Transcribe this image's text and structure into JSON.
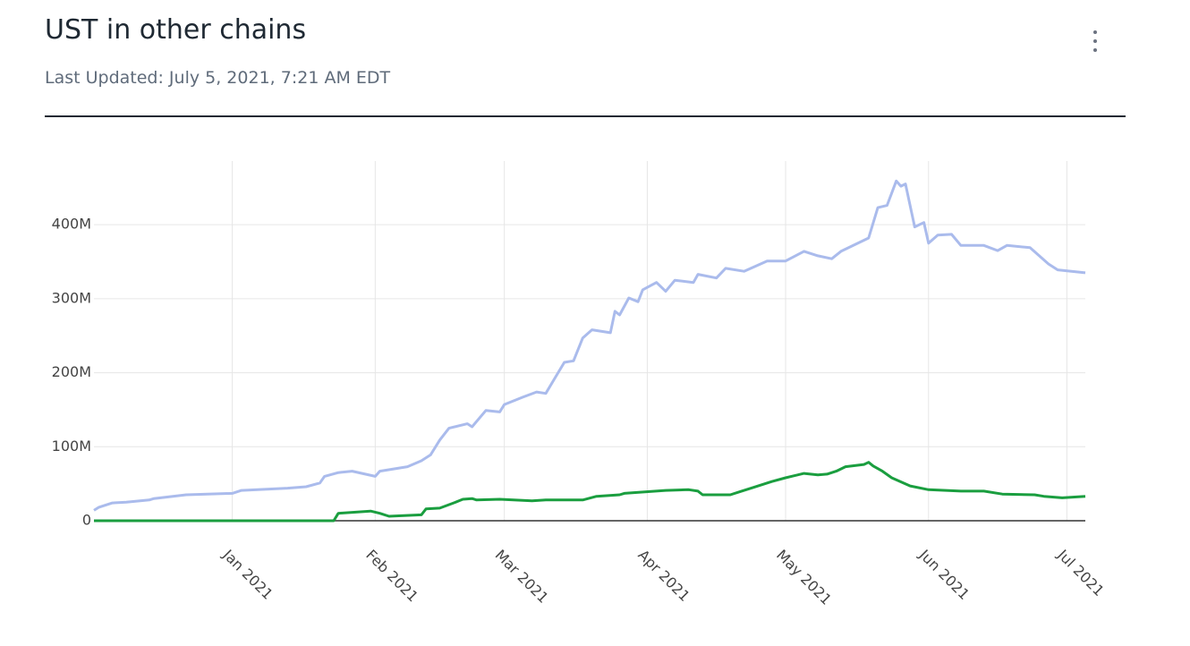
{
  "header": {
    "title": "UST in other chains",
    "subtitle": "Last Updated: July 5, 2021, 7:21 AM EDT"
  },
  "chart_data": {
    "type": "line",
    "xlim": [
      "2020-12-02",
      "2021-07-05"
    ],
    "xticks": [
      {
        "value": "2021-01-01",
        "label": "Jan 2021"
      },
      {
        "value": "2021-02-01",
        "label": "Feb 2021"
      },
      {
        "value": "2021-03-01",
        "label": "Mar 2021"
      },
      {
        "value": "2021-04-01",
        "label": "Apr 2021"
      },
      {
        "value": "2021-05-01",
        "label": "May 2021"
      },
      {
        "value": "2021-06-01",
        "label": "Jun 2021"
      },
      {
        "value": "2021-07-01",
        "label": "Jul 2021"
      }
    ],
    "ylim": [
      0,
      486
    ],
    "yticks": [
      0,
      {
        "value": 100,
        "label": "100M"
      },
      {
        "value": 200,
        "label": "200M"
      },
      {
        "value": 300,
        "label": "300M"
      },
      {
        "value": 400,
        "label": "400M"
      }
    ],
    "grid": true,
    "series": [
      {
        "color": "#aabbec",
        "x": [
          "2020-12-02",
          "2020-12-03",
          "2020-12-06",
          "2020-12-09",
          "2020-12-14",
          "2020-12-15",
          "2020-12-22",
          "2021-01-01",
          "2021-01-03",
          "2021-01-13",
          "2021-01-17",
          "2021-01-20",
          "2021-01-21",
          "2021-01-24",
          "2021-01-27",
          "2021-02-01",
          "2021-02-02",
          "2021-02-08",
          "2021-02-11",
          "2021-02-13",
          "2021-02-15",
          "2021-02-17",
          "2021-02-21",
          "2021-02-22",
          "2021-02-25",
          "2021-02-28",
          "2021-03-01",
          "2021-03-05",
          "2021-03-08",
          "2021-03-10",
          "2021-03-12",
          "2021-03-14",
          "2021-03-16",
          "2021-03-18",
          "2021-03-20",
          "2021-03-24",
          "2021-03-25",
          "2021-03-26",
          "2021-03-28",
          "2021-03-30",
          "2021-03-31",
          "2021-04-03",
          "2021-04-05",
          "2021-04-07",
          "2021-04-11",
          "2021-04-12",
          "2021-04-16",
          "2021-04-18",
          "2021-04-22",
          "2021-04-27",
          "2021-05-01",
          "2021-05-05",
          "2021-05-08",
          "2021-05-11",
          "2021-05-13",
          "2021-05-19",
          "2021-05-21",
          "2021-05-23",
          "2021-05-25",
          "2021-05-26",
          "2021-05-27",
          "2021-05-29",
          "2021-05-31",
          "2021-06-01",
          "2021-06-03",
          "2021-06-06",
          "2021-06-08",
          "2021-06-13",
          "2021-06-16",
          "2021-06-18",
          "2021-06-23",
          "2021-06-27",
          "2021-06-29",
          "2021-07-05"
        ],
        "values": [
          14,
          18,
          24,
          25,
          28,
          30,
          35,
          37,
          41,
          44,
          46,
          51,
          60,
          65,
          67,
          60,
          67,
          73,
          81,
          89,
          109,
          125,
          131,
          127,
          149,
          147,
          157,
          167,
          174,
          172,
          193,
          214,
          216,
          247,
          258,
          254,
          283,
          278,
          301,
          296,
          312,
          322,
          310,
          325,
          322,
          333,
          328,
          341,
          337,
          351,
          351,
          364,
          358,
          354,
          364,
          382,
          423,
          426,
          459,
          452,
          455,
          397,
          403,
          375,
          386,
          387,
          372,
          372,
          365,
          372,
          369,
          347,
          339,
          335
        ]
      },
      {
        "color": "#1a9e3f",
        "x": [
          "2020-12-02",
          "2021-01-23",
          "2021-01-24",
          "2021-01-31",
          "2021-02-02",
          "2021-02-04",
          "2021-02-11",
          "2021-02-12",
          "2021-02-15",
          "2021-02-18",
          "2021-02-20",
          "2021-02-22",
          "2021-02-23",
          "2021-02-28",
          "2021-03-07",
          "2021-03-10",
          "2021-03-18",
          "2021-03-21",
          "2021-03-26",
          "2021-03-27",
          "2021-04-05",
          "2021-04-10",
          "2021-04-12",
          "2021-04-13",
          "2021-04-19",
          "2021-04-21",
          "2021-04-24",
          "2021-04-28",
          "2021-05-01",
          "2021-05-05",
          "2021-05-08",
          "2021-05-10",
          "2021-05-12",
          "2021-05-14",
          "2021-05-18",
          "2021-05-19",
          "2021-05-20",
          "2021-05-22",
          "2021-05-24",
          "2021-05-28",
          "2021-06-01",
          "2021-06-08",
          "2021-06-13",
          "2021-06-17",
          "2021-06-24",
          "2021-06-26",
          "2021-06-30",
          "2021-07-05"
        ],
        "values": [
          0,
          0,
          10,
          13,
          10,
          6,
          8,
          16,
          17,
          24,
          29,
          30,
          28,
          29,
          27,
          28,
          28,
          33,
          35,
          37,
          41,
          42,
          40,
          35,
          35,
          39,
          45,
          53,
          58,
          64,
          62,
          63,
          67,
          73,
          76,
          79,
          74,
          67,
          58,
          47,
          42,
          40,
          40,
          36,
          35,
          33,
          31,
          33
        ]
      }
    ]
  }
}
